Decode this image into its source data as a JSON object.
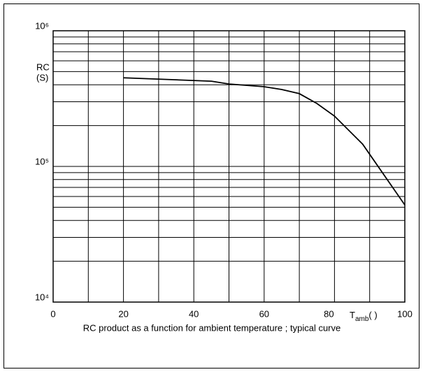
{
  "chart_data": {
    "type": "line",
    "caption": "RC product as a function for ambient temperature ; typical curve",
    "ylabel": [
      "RC",
      "(S)"
    ],
    "xlabel": "T",
    "xlabel_sub": "amb",
    "xlabel_unit": "(   )",
    "x": [
      20,
      45,
      50,
      60,
      65,
      70,
      75,
      80,
      88,
      100
    ],
    "series": [
      {
        "color": "#000000",
        "values": [
          450000,
          425000,
          405000,
          387000,
          369000,
          344000,
          291000,
          235000,
          146000,
          52000
        ]
      }
    ],
    "xlim": [
      0,
      100
    ],
    "xticks": [
      0,
      20,
      40,
      60,
      80,
      100
    ],
    "xminor": [
      10,
      30,
      50,
      70,
      90
    ],
    "ylim": [
      10000,
      1000000
    ],
    "log_y": true,
    "yticks": [
      {
        "value": 10000,
        "label": "10⁴"
      },
      {
        "value": 100000,
        "label": "10⁵"
      },
      {
        "value": 1000000,
        "label": "10⁶"
      }
    ],
    "yminor": [
      20000,
      30000,
      40000,
      50000,
      60000,
      70000,
      80000,
      90000,
      200000,
      300000,
      400000,
      500000,
      600000,
      700000,
      800000,
      900000
    ],
    "grid": true
  }
}
